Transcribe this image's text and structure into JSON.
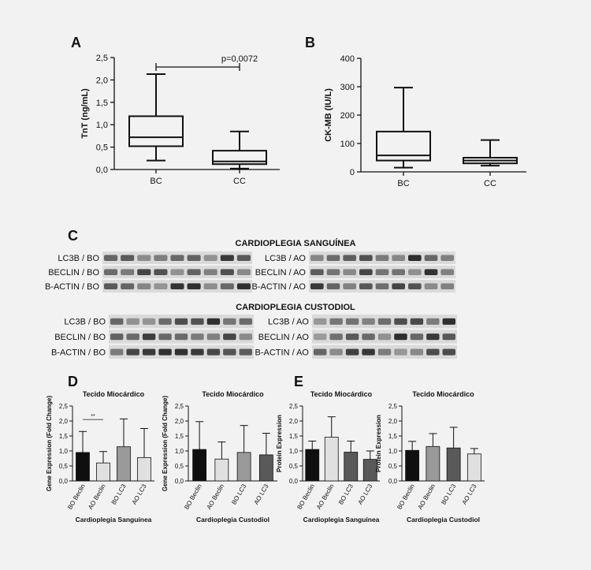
{
  "colors": {
    "background": "#f2f2f2",
    "axis": "#111111",
    "bar_black": "#0f0f0f",
    "bar_light": "#e0e0e0",
    "bar_mid": "#9a9a9a",
    "bar_dark": "#595959",
    "blot_background": "#dadada",
    "blot_band": "#222222"
  },
  "panel_labels": {
    "a": "A",
    "b": "B",
    "c": "C",
    "d": "D",
    "e": "E"
  },
  "chart_data": [
    {
      "panel": "A",
      "type": "boxplot",
      "categories": [
        "BC",
        "CC"
      ],
      "ylabel": "TnT (ng/mL)",
      "ylim": [
        0,
        2.5
      ],
      "yticks": [
        "0,0",
        "0,5",
        "1,0",
        "1,5",
        "2,0",
        "2,5"
      ],
      "ytick_values": [
        0,
        0.5,
        1.0,
        1.5,
        2.0,
        2.5
      ],
      "boxes": [
        {
          "category": "BC",
          "min": 0.2,
          "q1": 0.52,
          "median": 0.72,
          "q3": 1.19,
          "max": 2.13
        },
        {
          "category": "CC",
          "min": 0.02,
          "q1": 0.12,
          "median": 0.18,
          "q3": 0.42,
          "max": 0.85
        }
      ],
      "annotation": "p=0,0072"
    },
    {
      "panel": "B",
      "type": "boxplot",
      "categories": [
        "BC",
        "CC"
      ],
      "ylabel": "CK-MB (IU/L)",
      "ylim": [
        0,
        400
      ],
      "yticks": [
        "0",
        "100",
        "200",
        "300",
        "400"
      ],
      "ytick_values": [
        0,
        100,
        200,
        300,
        400
      ],
      "boxes": [
        {
          "category": "BC",
          "min": 15,
          "q1": 40,
          "median": 58,
          "q3": 142,
          "max": 297
        },
        {
          "category": "CC",
          "min": 22,
          "q1": 30,
          "median": 40,
          "q3": 50,
          "max": 112
        }
      ]
    },
    {
      "panel": "D-left",
      "type": "bar",
      "title": "Tecido Miocárdico",
      "ylabel": "Gene Expression (Fold Change)",
      "xlabel": "Cardioplegia Sanguínea",
      "ylim": [
        0,
        2.5
      ],
      "yticks": [
        "0,0",
        "0,5",
        "1,0",
        "1,5",
        "2,0",
        "2,5"
      ],
      "ytick_values": [
        0,
        0.5,
        1.0,
        1.5,
        2.0,
        2.5
      ],
      "categories": [
        "BO Beclin",
        "AO Beclin",
        "BO LC3",
        "AO LC3"
      ],
      "values": [
        0.95,
        0.6,
        1.14,
        0.78
      ],
      "errors": [
        0.7,
        0.38,
        0.93,
        0.97
      ],
      "bar_colors": [
        "#0f0f0f",
        "#e0e0e0",
        "#9a9a9a",
        "#e0e0e0"
      ],
      "annotation": "**"
    },
    {
      "panel": "D-right",
      "type": "bar",
      "title": "Tecido Miocárdico",
      "ylabel": "Gene Expression (Fold Change)",
      "xlabel": "Cardioplegia Custodiol",
      "ylim": [
        0,
        2.5
      ],
      "yticks": [
        "0,0",
        "0,5",
        "1,0",
        "1,5",
        "2,0",
        "2,5"
      ],
      "ytick_values": [
        0,
        0.5,
        1.0,
        1.5,
        2.0,
        2.5
      ],
      "categories": [
        "BO Beclin",
        "AO Beclin",
        "BO LC3",
        "AO LC3"
      ],
      "values": [
        1.05,
        0.73,
        0.95,
        0.87
      ],
      "errors": [
        0.93,
        0.57,
        0.9,
        0.72
      ],
      "bar_colors": [
        "#0f0f0f",
        "#e0e0e0",
        "#9a9a9a",
        "#595959"
      ]
    },
    {
      "panel": "E-left",
      "type": "bar",
      "title": "Tecido Miocárdico",
      "ylabel": "Protein Expression",
      "xlabel": "Cardioplegia Sanguínea",
      "ylim": [
        0,
        2.5
      ],
      "yticks": [
        "0,0",
        "0,5",
        "1,0",
        "1,5",
        "2,0",
        "2,5"
      ],
      "ytick_values": [
        0,
        0.5,
        1.0,
        1.5,
        2.0,
        2.5
      ],
      "categories": [
        "BO Beclin",
        "AO Beclin",
        "BO LC3",
        "AO LC3"
      ],
      "values": [
        1.05,
        1.46,
        0.96,
        0.72
      ],
      "errors": [
        0.28,
        0.68,
        0.37,
        0.28
      ],
      "bar_colors": [
        "#0f0f0f",
        "#e0e0e0",
        "#595959",
        "#595959"
      ]
    },
    {
      "panel": "E-right",
      "type": "bar",
      "title": "Tecido Miocárdico",
      "ylabel": "Protein Expression",
      "xlabel": "Cardioplegia Custodiol",
      "ylim": [
        0,
        2.5
      ],
      "yticks": [
        "0,0",
        "0,5",
        "1,0",
        "1,5",
        "2,0",
        "2,5"
      ],
      "ytick_values": [
        0,
        0.5,
        1.0,
        1.5,
        2.0,
        2.5
      ],
      "categories": [
        "BO Beclin",
        "AO Beclin",
        "BO LC3",
        "AO LC3"
      ],
      "values": [
        1.02,
        1.15,
        1.1,
        0.9
      ],
      "errors": [
        0.3,
        0.43,
        0.69,
        0.18
      ],
      "bar_colors": [
        "#0f0f0f",
        "#9a9a9a",
        "#595959",
        "#e0e0e0"
      ]
    }
  ],
  "blots": {
    "top_title": "CARDIOPLEGIA SANGUÍNEA",
    "bottom_title": "CARDIOPLEGIA CUSTODIOL",
    "top_left_labels": [
      "LC3B / BO",
      "BECLIN / BO",
      "B-ACTIN / BO"
    ],
    "top_right_labels": [
      "LC3B / AO",
      "BECLIN / AO",
      "B-ACTIN / AO"
    ],
    "bottom_left_labels": [
      "LC3B / BO",
      "BECLIN / BO",
      "B-ACTIN / BO"
    ],
    "bottom_right_labels": [
      "LC3B / AO",
      "BECLIN / AO",
      "B-ACTIN / AO"
    ]
  }
}
